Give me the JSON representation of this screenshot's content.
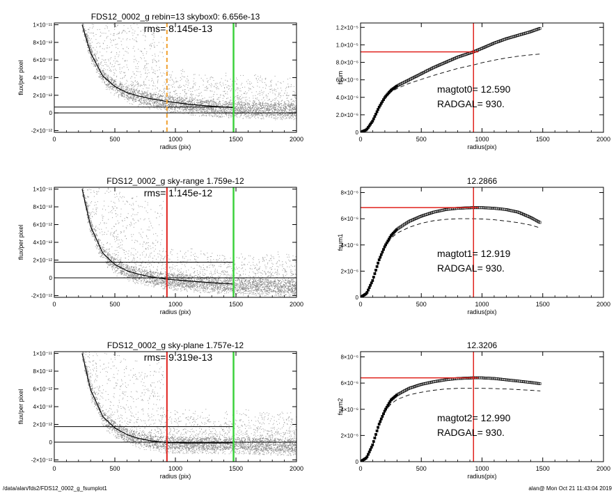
{
  "footer": {
    "path": "/data/alan/fds2/FDS12_0002_g_fsumplot1",
    "stamp": "alan@  Mon Oct 21 11:43:04 2019"
  },
  "colors": {
    "axis": "#000000",
    "scatter": "#9a9a9a",
    "profile": "#000000",
    "red": "#e0201b",
    "green": "#3bd13b",
    "orange": "#f0a030"
  },
  "chart_data": [
    {
      "type": "scatter",
      "title": "FDS12_0002_g rebin=13    skybox0:  6.656e-13",
      "annotation": "rms= 8.145e-13",
      "xlabel": "radius (pix)",
      "ylabel": "flux/per pixel",
      "xlim": [
        0,
        2000
      ],
      "ylim": [
        -2.2e-12,
        1.02e-11
      ],
      "xticks": [
        0,
        500,
        1000,
        1500,
        2000
      ],
      "xtick_labels": [
        "0",
        "500",
        "1000",
        "1500",
        "2000"
      ],
      "yticks": [
        -2e-12,
        0,
        2e-12,
        4e-12,
        6e-12,
        8e-12,
        1e-11
      ],
      "ytick_labels": [
        "-2×10⁻¹²",
        "0",
        "2×10⁻¹²",
        "4×10⁻¹²",
        "6×10⁻¹²",
        "8×10⁻¹²",
        "1×10⁻¹¹"
      ],
      "hlines": [
        0,
        6.656e-13
      ],
      "vlines": [
        {
          "x": 930,
          "color": "orange",
          "dashed": true
        },
        {
          "x": 1480,
          "color": "green"
        }
      ],
      "profile_curve": {
        "x": [
          230,
          300,
          400,
          500,
          600,
          700,
          800,
          930,
          1100,
          1300,
          1480
        ],
        "y": [
          1e-11,
          6.8e-12,
          4.2e-12,
          3e-12,
          2.3e-12,
          1.9e-12,
          1.6e-12,
          1.3e-12,
          1e-12,
          7.5e-13,
          6e-13
        ]
      },
      "grid": false
    },
    {
      "type": "scatter",
      "title": "FDS12_0002_g sky-range  1.759e-12",
      "annotation": "rms= 1.145e-12",
      "xlabel": "radius (pix)",
      "ylabel": "flux/per pixel",
      "xlim": [
        0,
        2000
      ],
      "ylim": [
        -2.2e-12,
        1.02e-11
      ],
      "xticks": [
        0,
        500,
        1000,
        1500,
        2000
      ],
      "xtick_labels": [
        "0",
        "500",
        "1000",
        "1500",
        "2000"
      ],
      "yticks": [
        -2e-12,
        0,
        2e-12,
        4e-12,
        6e-12,
        8e-12,
        1e-11
      ],
      "ytick_labels": [
        "-2×10⁻¹²",
        "0",
        "2×10⁻¹²",
        "4×10⁻¹²",
        "6×10⁻¹²",
        "8×10⁻¹²",
        "1×10⁻¹¹"
      ],
      "hlines": [
        0,
        1.759e-12
      ],
      "vlines": [
        {
          "x": 930,
          "color": "red"
        },
        {
          "x": 1480,
          "color": "green"
        }
      ],
      "profile_curve": {
        "x": [
          230,
          300,
          400,
          500,
          600,
          700,
          800,
          930,
          1100,
          1300,
          1480
        ],
        "y": [
          1e-11,
          5.8e-12,
          2.8e-12,
          1.5e-12,
          8e-13,
          4e-13,
          1e-13,
          -1.5e-13,
          -3.5e-13,
          -5.5e-13,
          -7e-13
        ]
      },
      "grid": false
    },
    {
      "type": "scatter",
      "title": "FDS12_0002_g sky-plane  1.757e-12",
      "annotation": "rms= 9.319e-13",
      "xlabel": "radius (pix)",
      "ylabel": "flux/per pixel",
      "xlim": [
        0,
        2000
      ],
      "ylim": [
        -2.2e-12,
        1.02e-11
      ],
      "xticks": [
        0,
        500,
        1000,
        1500,
        2000
      ],
      "xtick_labels": [
        "0",
        "500",
        "1000",
        "1500",
        "2000"
      ],
      "yticks": [
        -2e-12,
        0,
        2e-12,
        4e-12,
        6e-12,
        8e-12,
        1e-11
      ],
      "ytick_labels": [
        "-2×10⁻¹²",
        "0",
        "2×10⁻¹²",
        "4×10⁻¹²",
        "6×10⁻¹²",
        "8×10⁻¹²",
        "1×10⁻¹¹"
      ],
      "hlines": [
        0,
        1.757e-12
      ],
      "vlines": [
        {
          "x": 930,
          "color": "red"
        },
        {
          "x": 1480,
          "color": "green"
        }
      ],
      "profile_curve": {
        "x": [
          230,
          300,
          400,
          500,
          600,
          700,
          800,
          930,
          1100,
          1300,
          1480
        ],
        "y": [
          1e-11,
          5.9e-12,
          2.9e-12,
          1.6e-12,
          8.5e-13,
          4e-13,
          1.5e-13,
          -5e-14,
          -1e-13,
          -1e-13,
          -1e-13
        ]
      },
      "grid": false
    },
    {
      "type": "scatter",
      "title": "",
      "annotation_lines": [
        "magtot0=  12.590",
        "RADGAL=    930."
      ],
      "xlabel": "radius(pix)",
      "ylabel": "fsum",
      "xlim": [
        0,
        2000
      ],
      "ylim": [
        0,
        1.25e-05
      ],
      "xticks": [
        0,
        500,
        1000,
        1500,
        2000
      ],
      "xtick_labels": [
        "0",
        "500",
        "1000",
        "1500",
        "2000"
      ],
      "yticks": [
        0,
        2e-06,
        4e-06,
        6e-06,
        8e-06,
        1e-05,
        1.2e-05
      ],
      "ytick_labels": [
        "0",
        "2.0×10⁻⁶",
        "4.0×10⁻⁶",
        "6.0×10⁻⁶",
        "8.0×10⁻⁶",
        "1.0×10⁻⁵",
        "1.2×10⁻⁵"
      ],
      "crosshair": {
        "x": 930,
        "y": 9.2e-06
      },
      "series": [
        {
          "style": "points",
          "x": [
            0,
            50,
            100,
            150,
            200,
            250,
            300,
            400,
            500,
            600,
            700,
            800,
            930,
            1000,
            1100,
            1200,
            1300,
            1400,
            1480
          ],
          "y": [
            0,
            3e-07,
            1.3e-06,
            2.8e-06,
            4e-06,
            4.8e-06,
            5.3e-06,
            6e-06,
            6.7e-06,
            7.4e-06,
            8e-06,
            8.6e-06,
            9.2e-06,
            9.6e-06,
            1.02e-05,
            1.07e-05,
            1.11e-05,
            1.15e-05,
            1.19e-05
          ]
        },
        {
          "style": "dashed",
          "x": [
            0,
            50,
            100,
            150,
            200,
            250,
            300,
            400,
            500,
            600,
            700,
            800,
            930,
            1000,
            1100,
            1200,
            1300,
            1400,
            1480
          ],
          "y": [
            0,
            2.9e-07,
            1.25e-06,
            2.7e-06,
            3.9e-06,
            4.6e-06,
            5e-06,
            5.6e-06,
            6.05e-06,
            6.5e-06,
            6.9e-06,
            7.3e-06,
            7.7e-06,
            7.95e-06,
            8.25e-06,
            8.5e-06,
            8.7e-06,
            8.85e-06,
            8.95e-06
          ]
        }
      ],
      "grid": false
    },
    {
      "type": "scatter",
      "title": "12.2866",
      "annotation_lines": [
        "magtot1=  12.919",
        "RADGAL=    930."
      ],
      "xlabel": "radius(pix)",
      "ylabel": "fsum1",
      "xlim": [
        0,
        2000
      ],
      "ylim": [
        0,
        8.4e-06
      ],
      "xticks": [
        0,
        500,
        1000,
        1500,
        2000
      ],
      "xtick_labels": [
        "0",
        "500",
        "1000",
        "1500",
        "2000"
      ],
      "yticks": [
        0,
        2e-06,
        4e-06,
        6e-06,
        8e-06
      ],
      "ytick_labels": [
        "0",
        "2×10⁻⁶",
        "4×10⁻⁶",
        "6×10⁻⁶",
        "8×10⁻⁶"
      ],
      "crosshair": {
        "x": 930,
        "y": 6.85e-06
      },
      "series": [
        {
          "style": "points",
          "x": [
            0,
            50,
            100,
            150,
            200,
            250,
            300,
            400,
            500,
            600,
            700,
            800,
            930,
            1000,
            1100,
            1200,
            1300,
            1400,
            1480
          ],
          "y": [
            0,
            3e-07,
            1.3e-06,
            2.8e-06,
            3.9e-06,
            4.7e-06,
            5.2e-06,
            5.8e-06,
            6.2e-06,
            6.5e-06,
            6.7e-06,
            6.8e-06,
            6.85e-06,
            6.85e-06,
            6.8e-06,
            6.7e-06,
            6.5e-06,
            6.1e-06,
            5.7e-06
          ]
        },
        {
          "style": "dashed",
          "x": [
            0,
            50,
            100,
            150,
            200,
            250,
            300,
            400,
            500,
            600,
            700,
            800,
            930,
            1000,
            1100,
            1200,
            1300,
            1400,
            1480
          ],
          "y": [
            0,
            2.9e-07,
            1.25e-06,
            2.7e-06,
            3.8e-06,
            4.5e-06,
            4.9e-06,
            5.35e-06,
            5.65e-06,
            5.85e-06,
            5.95e-06,
            6e-06,
            6e-06,
            5.98e-06,
            5.92e-06,
            5.82e-06,
            5.7e-06,
            5.52e-06,
            5.3e-06
          ]
        }
      ],
      "grid": false
    },
    {
      "type": "scatter",
      "title": "12.3206",
      "annotation_lines": [
        "magtot2=  12.990",
        "RADGAL=    930."
      ],
      "xlabel": "radius(pix)",
      "ylabel": "fsum2",
      "xlim": [
        0,
        2000
      ],
      "ylim": [
        0,
        8.4e-06
      ],
      "xticks": [
        0,
        500,
        1000,
        1500,
        2000
      ],
      "xtick_labels": [
        "0",
        "500",
        "1000",
        "1500",
        "2000"
      ],
      "yticks": [
        0,
        2e-06,
        4e-06,
        6e-06,
        8e-06
      ],
      "ytick_labels": [
        "0",
        "2×10⁻⁶",
        "4×10⁻⁶",
        "6×10⁻⁶",
        "8×10⁻⁶"
      ],
      "crosshair": {
        "x": 930,
        "y": 6.4e-06
      },
      "series": [
        {
          "style": "points",
          "x": [
            0,
            50,
            100,
            150,
            200,
            250,
            300,
            400,
            500,
            600,
            700,
            800,
            930,
            1000,
            1100,
            1200,
            1300,
            1400,
            1480
          ],
          "y": [
            0,
            3e-07,
            1.3e-06,
            2.8e-06,
            3.9e-06,
            4.7e-06,
            5.1e-06,
            5.6e-06,
            5.9e-06,
            6.1e-06,
            6.25e-06,
            6.35e-06,
            6.4e-06,
            6.4e-06,
            6.35e-06,
            6.25e-06,
            6.15e-06,
            6.05e-06,
            5.95e-06
          ]
        },
        {
          "style": "dashed",
          "x": [
            0,
            50,
            100,
            150,
            200,
            250,
            300,
            400,
            500,
            600,
            700,
            800,
            930,
            1000,
            1100,
            1200,
            1300,
            1400,
            1480
          ],
          "y": [
            0,
            2.9e-07,
            1.25e-06,
            2.7e-06,
            3.8e-06,
            4.4e-06,
            4.75e-06,
            5.1e-06,
            5.3e-06,
            5.45e-06,
            5.55e-06,
            5.6e-06,
            5.6e-06,
            5.6e-06,
            5.58e-06,
            5.55e-06,
            5.5e-06,
            5.45e-06,
            5.4e-06
          ]
        }
      ],
      "grid": false
    }
  ]
}
